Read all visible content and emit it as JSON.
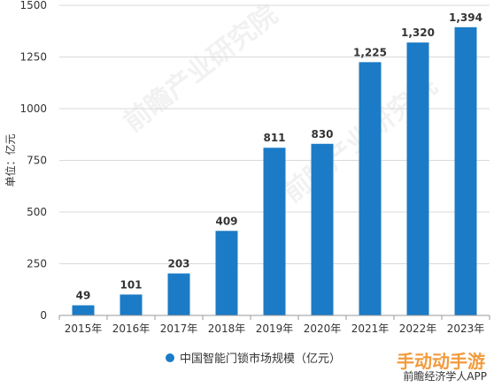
{
  "chart_data": {
    "type": "bar",
    "categories": [
      "2015年",
      "2016年",
      "2017年",
      "2018年",
      "2019年",
      "2020年",
      "2021年",
      "2022年",
      "2023年"
    ],
    "series": [
      {
        "name": "中国智能门锁市场规模（亿元）",
        "values": [
          49,
          101,
          203,
          409,
          811,
          830,
          1225,
          1320,
          1394
        ]
      }
    ],
    "data_labels": [
      "49",
      "101",
      "203",
      "409",
      "811",
      "830",
      "1,225",
      "1,320",
      "1,394"
    ],
    "ylabel": "单位：亿元",
    "ylim": [
      0,
      1500
    ],
    "yticks": [
      0,
      250,
      500,
      750,
      1000,
      1250,
      1500
    ],
    "grid": true,
    "legend_position": "bottom",
    "bar_color": "#1b7bc6"
  },
  "watermark": "前瞻产业研究院",
  "badge": "手动动手游",
  "brand": "前瞻经济学人APP"
}
